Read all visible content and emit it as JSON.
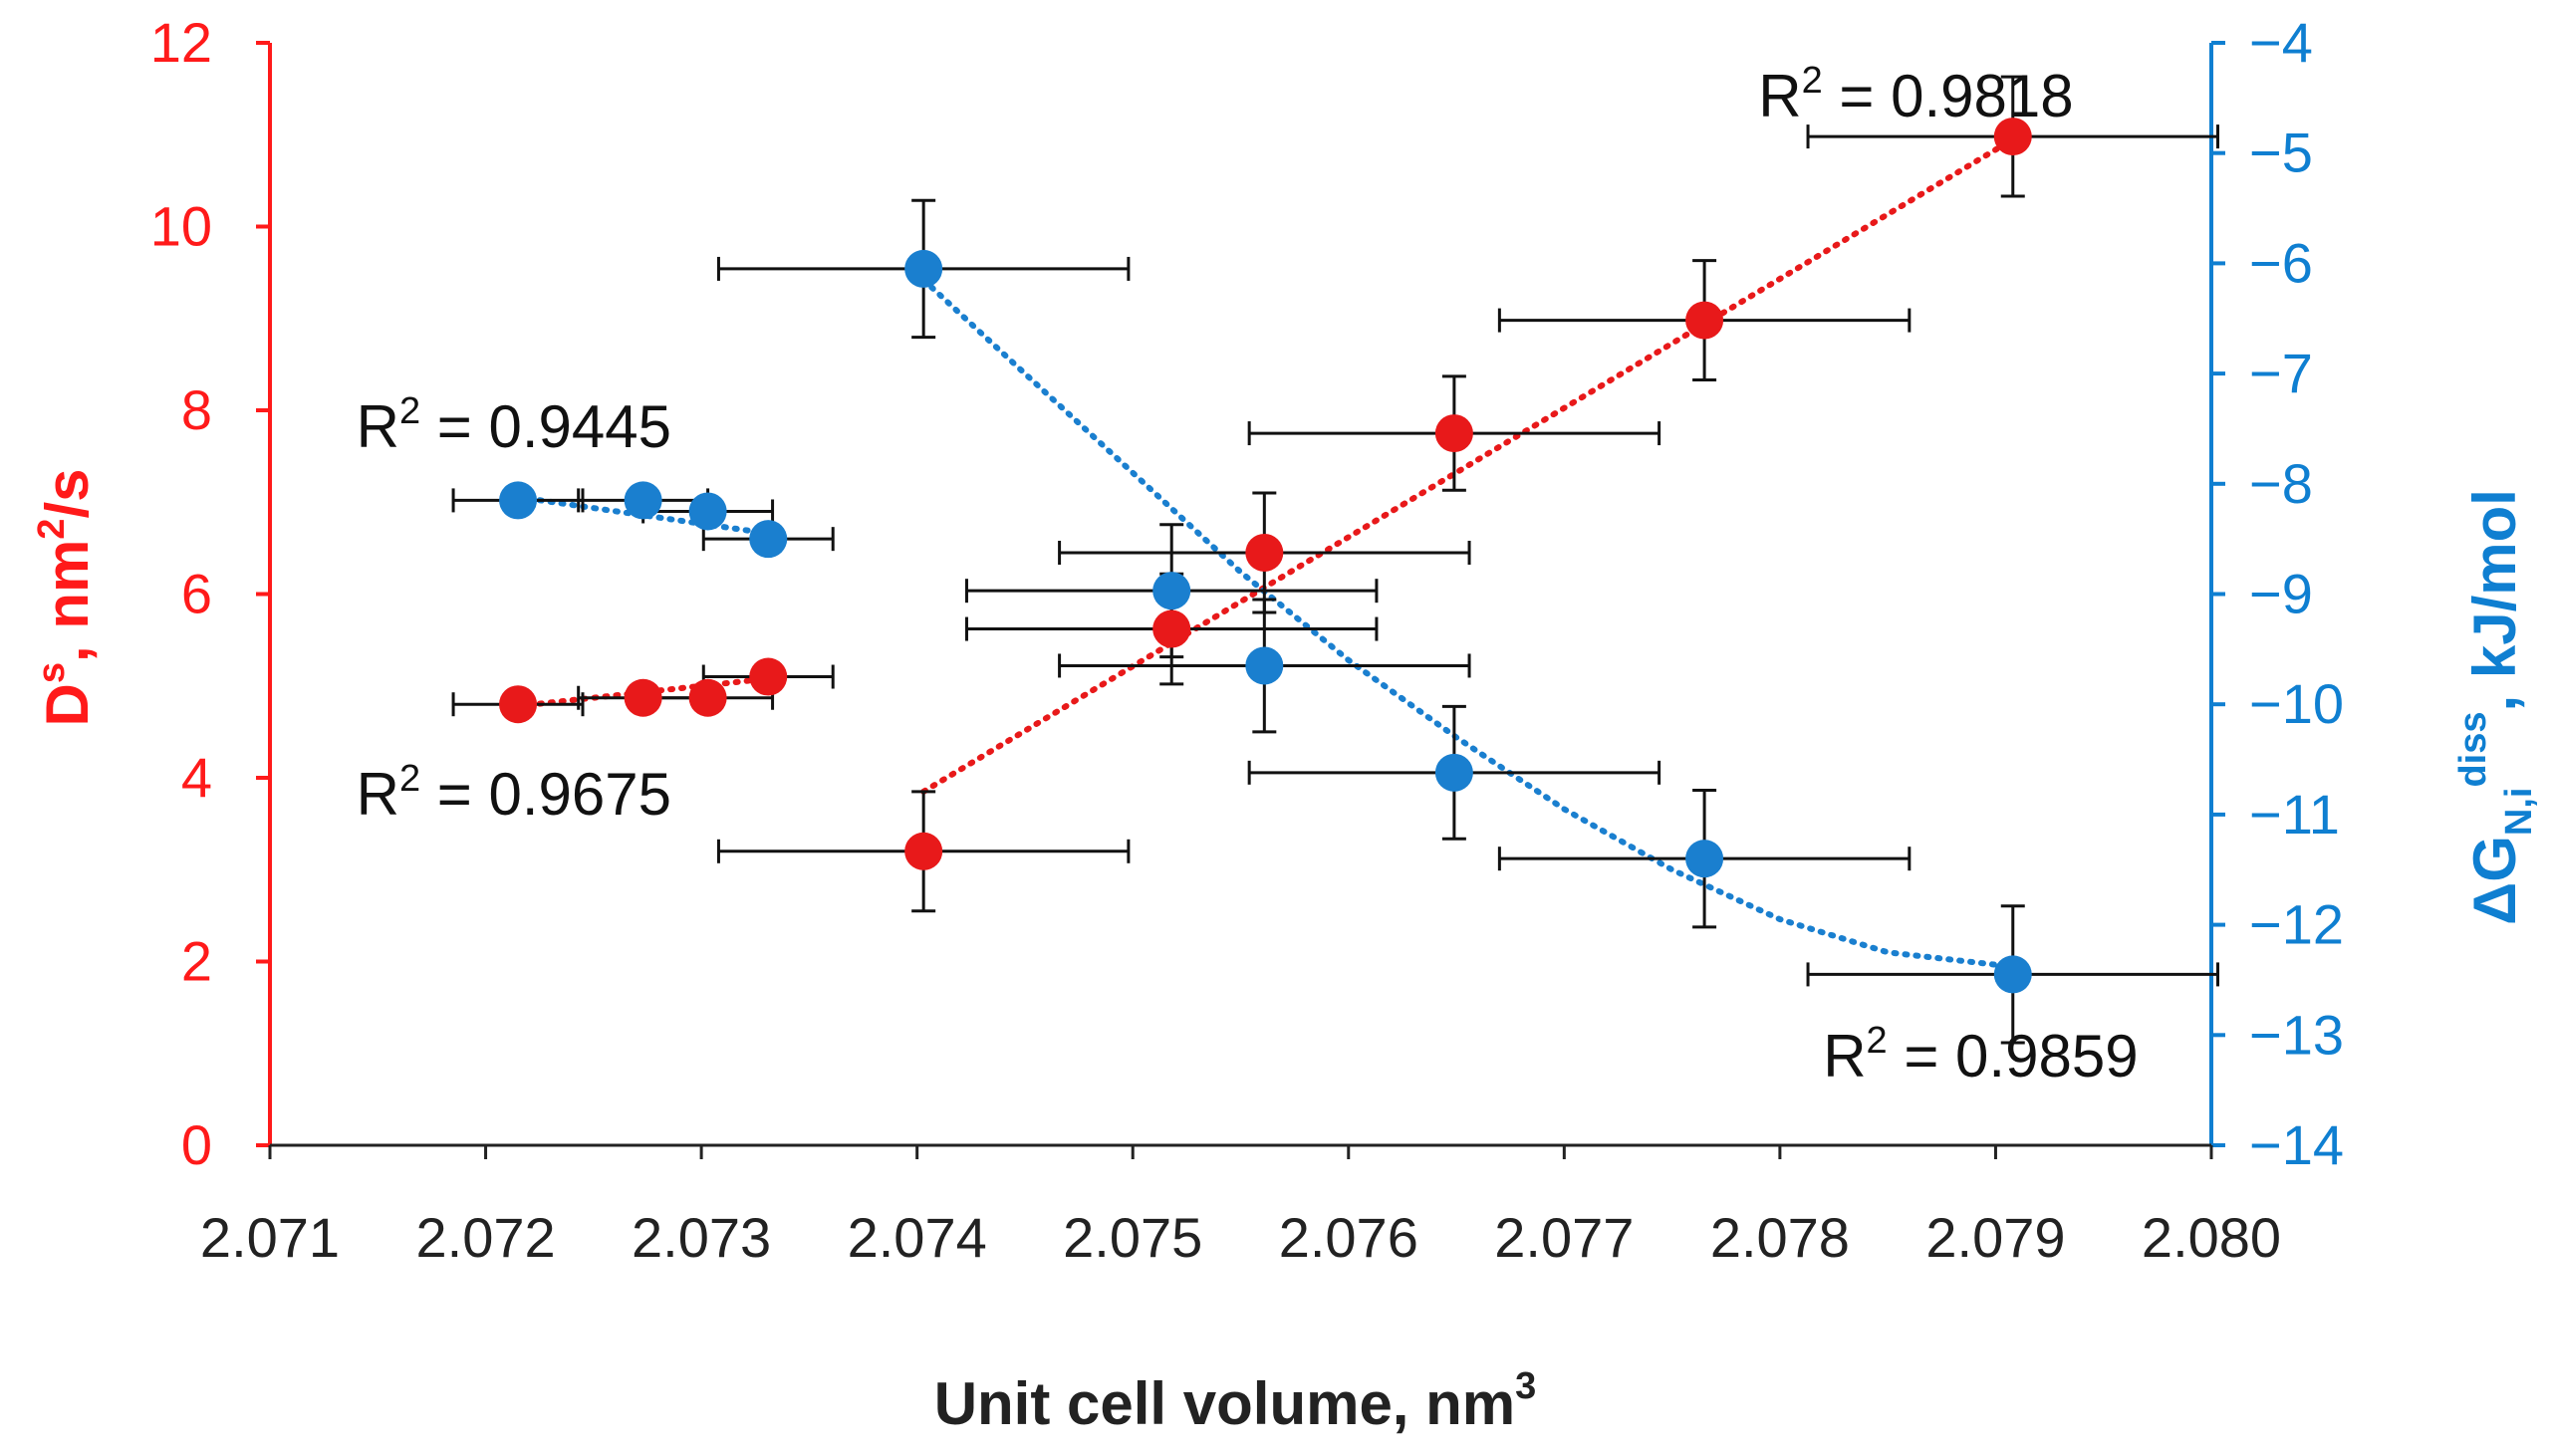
{
  "chart_data": {
    "type": "scatter",
    "x_axis": {
      "title": "Unit cell volume, nm",
      "title_sup": "3",
      "min": 2.071,
      "max": 2.08,
      "step": 0.001,
      "tick_labels": [
        "2.071",
        "2.072",
        "2.073",
        "2.074",
        "2.075",
        "2.076",
        "2.077",
        "2.078",
        "2.079",
        "2.080"
      ]
    },
    "y_left": {
      "title_main": "D",
      "title_sup1": "s",
      "title_mid": ", nm",
      "title_sup2": "2",
      "title_end": "/s",
      "min": 0,
      "max": 12,
      "step": 2,
      "tick_labels": [
        "0",
        "2",
        "4",
        "6",
        "8",
        "10",
        "12"
      ],
      "color": "#ff1a1a"
    },
    "y_right": {
      "title_main": "ΔG",
      "title_sub": "N,i",
      "title_sup": "diss",
      "title_end": ", kJ/mol",
      "min": -14,
      "max": -4,
      "step": 1,
      "tick_labels": [
        "−14",
        "−13",
        "−12",
        "−11",
        "−10",
        "−9",
        "−8",
        "−7",
        "−6",
        "−5",
        "−4"
      ],
      "color": "#0f7fd1"
    },
    "series": [
      {
        "name": "Ds",
        "axis": "left",
        "color": "#e8191a",
        "x": [
          2.07215,
          2.07273,
          2.07303,
          2.07331,
          2.07403,
          2.07518,
          2.07561,
          2.07649,
          2.07765,
          2.07908
        ],
        "y": [
          4.8,
          4.87,
          4.87,
          5.1,
          3.2,
          5.62,
          6.45,
          7.75,
          8.98,
          10.98
        ],
        "x_err": [
          0.0003,
          0.0003,
          0.0003,
          0.0003,
          0.00095,
          0.00095,
          0.00095,
          0.00095,
          0.00095,
          0.00095
        ],
        "y_err": [
          0.0,
          0.0,
          0.0,
          0.0,
          0.65,
          0.6,
          0.65,
          0.62,
          0.65,
          0.65
        ]
      },
      {
        "name": "dG",
        "axis": "right",
        "color": "#1a7fcf",
        "x": [
          2.07215,
          2.07273,
          2.07303,
          2.07331,
          2.07403,
          2.07518,
          2.07561,
          2.07649,
          2.07765,
          2.07908
        ],
        "y": [
          -8.15,
          -8.15,
          -8.25,
          -8.5,
          -6.05,
          -8.97,
          -9.65,
          -10.62,
          -11.4,
          -12.45
        ],
        "x_err": [
          0.0003,
          0.0003,
          0.0003,
          0.0003,
          0.00095,
          0.00095,
          0.00095,
          0.00095,
          0.00095,
          0.00095
        ],
        "y_err": [
          0.0,
          0.0,
          0.0,
          0.0,
          0.62,
          0.6,
          0.6,
          0.6,
          0.62,
          0.62
        ]
      }
    ],
    "fit_lines": [
      {
        "series": "Ds",
        "axis": "left",
        "x": [
          2.07215,
          2.07331
        ],
        "y": [
          4.78,
          5.08
        ]
      },
      {
        "series": "Ds",
        "axis": "left",
        "x": [
          2.07403,
          2.07908
        ],
        "y": [
          3.85,
          10.95
        ]
      },
      {
        "series": "dG",
        "axis": "right",
        "x": [
          2.07215,
          2.07331
        ],
        "y": [
          -8.12,
          -8.45
        ]
      },
      {
        "series": "dG",
        "axis": "right",
        "x": [
          2.07403,
          2.0745,
          2.075,
          2.0755,
          2.076,
          2.0765,
          2.077,
          2.0775,
          2.078,
          2.0785,
          2.07908
        ],
        "y": [
          -6.15,
          -7.0,
          -7.9,
          -8.8,
          -9.6,
          -10.3,
          -10.95,
          -11.5,
          -11.95,
          -12.25,
          -12.38
        ]
      }
    ],
    "annotations": [
      {
        "text_base": "R",
        "sup": "2",
        "text_rest": " = 0.9818",
        "x": 2.0779,
        "y_axis": "left",
        "y": 11.2
      },
      {
        "text_base": "R",
        "sup": "2",
        "text_rest": " = 0.9445",
        "x": 2.0714,
        "y_axis": "left",
        "y": 7.6
      },
      {
        "text_base": "R",
        "sup": "2",
        "text_rest": " = 0.9675",
        "x": 2.0714,
        "y_axis": "left",
        "y": 3.6
      },
      {
        "text_base": "R",
        "sup": "2",
        "text_rest": " = 0.9859",
        "x": 2.0782,
        "y_axis": "left",
        "y": 0.75
      }
    ]
  }
}
